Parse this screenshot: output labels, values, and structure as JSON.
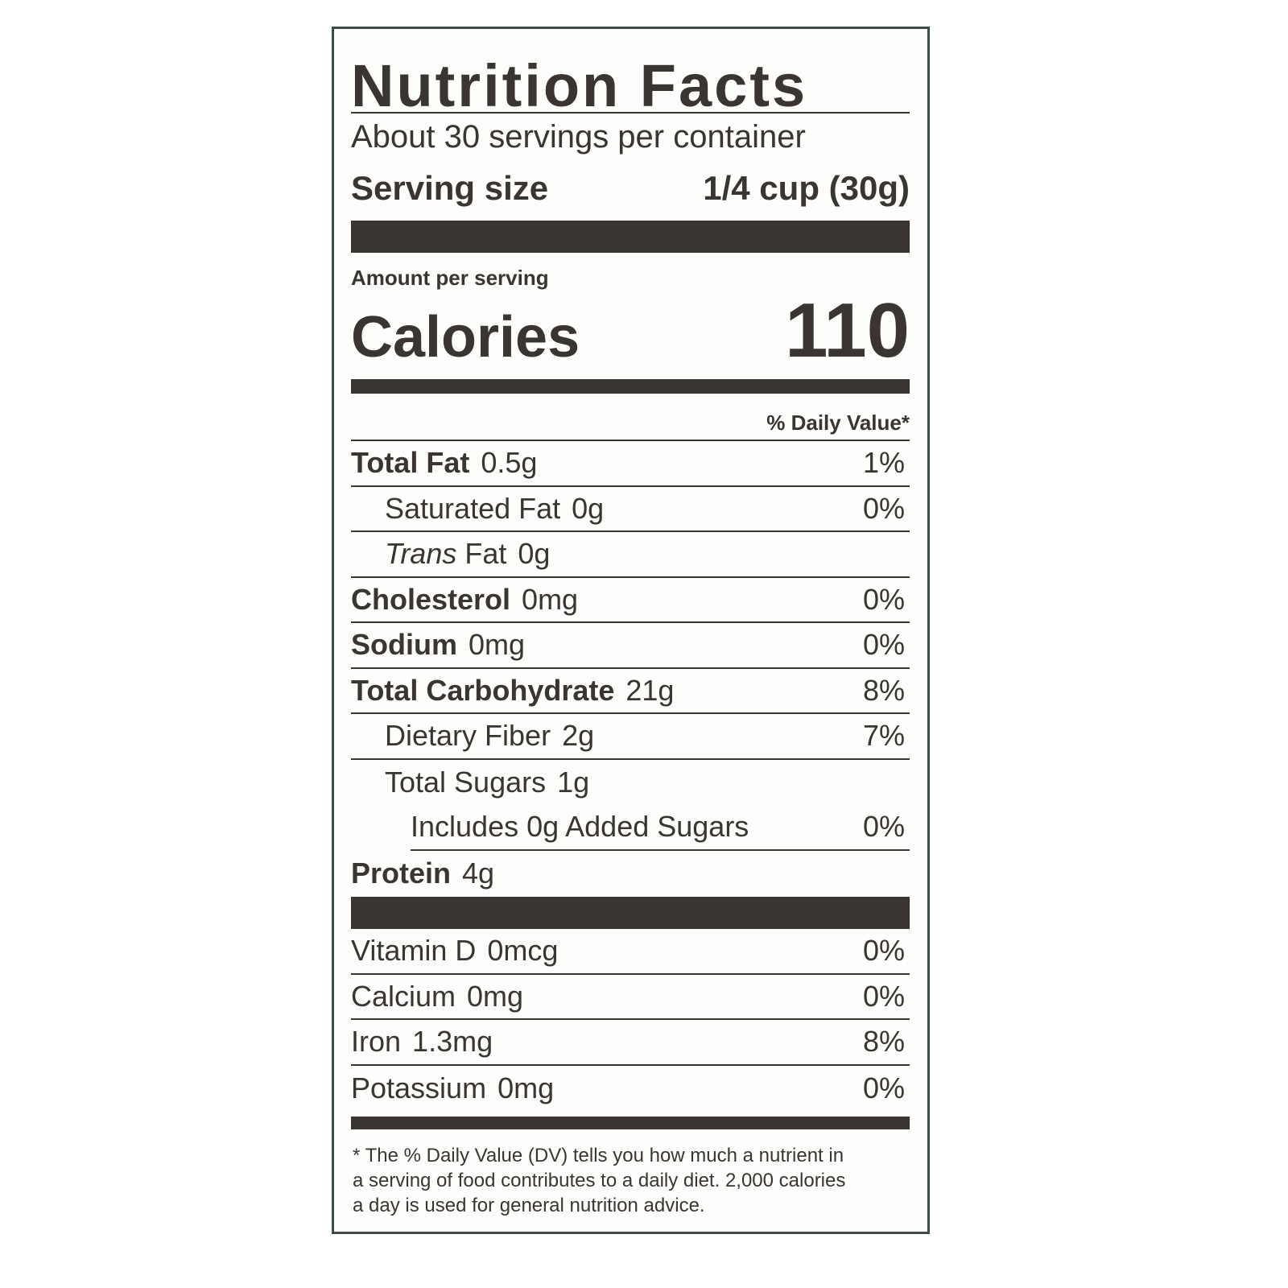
{
  "label": {
    "title": "Nutrition Facts",
    "servings": "About 30 servings per container",
    "serving_size": {
      "label": "Serving size",
      "value": "1/4 cup (30g)"
    },
    "amount_per_serving": "Amount per serving",
    "calories": {
      "label": "Calories",
      "value": "110"
    },
    "dv_header": "% Daily Value*",
    "nutrients": [
      {
        "label": "Total Fat",
        "amount": "0.5g",
        "dv": "1%"
      },
      {
        "label": "Saturated Fat",
        "amount": "0g",
        "dv": "0%"
      },
      {
        "label_italic": "Trans",
        "label": "Fat",
        "amount": "0g"
      },
      {
        "label": "Cholesterol",
        "amount": "0mg",
        "dv": "0%"
      },
      {
        "label": "Sodium",
        "amount": "0mg",
        "dv": "0%"
      },
      {
        "label": "Total Carbohydrate",
        "amount": "21g",
        "dv": "8%"
      },
      {
        "label": "Dietary Fiber",
        "amount": "2g",
        "dv": "7%"
      },
      {
        "label": "Total Sugars",
        "amount": "1g"
      },
      {
        "label": "Includes 0g Added Sugars",
        "dv": "0%"
      },
      {
        "label": "Protein",
        "amount": "4g"
      }
    ],
    "vitamins": [
      {
        "label": "Vitamin D",
        "amount": "0mcg",
        "dv": "0%"
      },
      {
        "label": "Calcium",
        "amount": "0mg",
        "dv": "0%"
      },
      {
        "label": "Iron",
        "amount": "1.3mg",
        "dv": "8%"
      },
      {
        "label": "Potassium",
        "amount": "0mg",
        "dv": "0%"
      }
    ],
    "footnote": "* The % Daily Value (DV) tells you how much a nutrient in a serving of food contributes to a daily diet. 2,000 calories a day is used for general nutrition advice."
  }
}
